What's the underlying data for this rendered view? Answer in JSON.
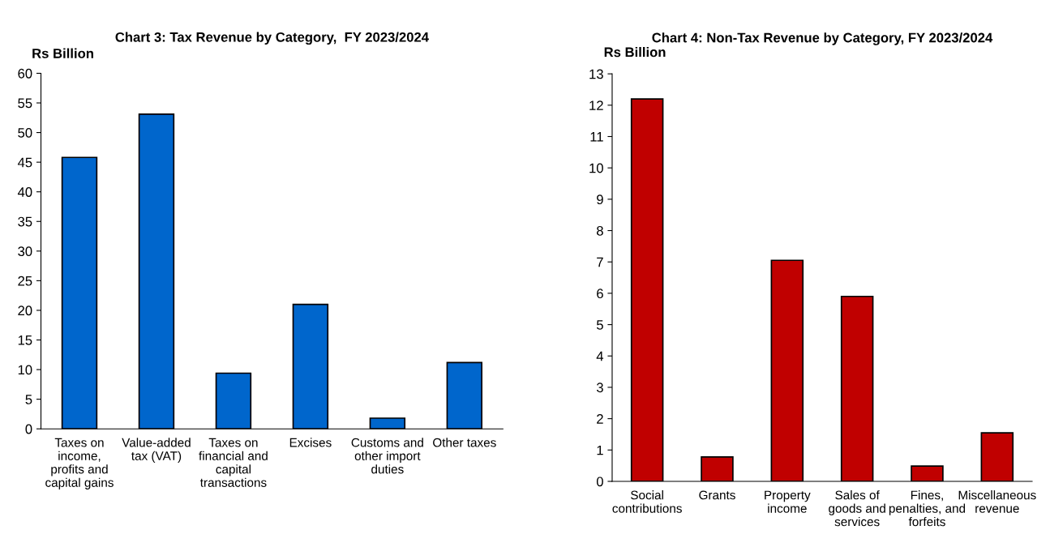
{
  "chart_data": [
    {
      "type": "bar",
      "title": "Chart 3: Tax Revenue by Category,  FY 2023/2024",
      "ylabel": "Rs Billion",
      "categories": [
        "Taxes on\nincome,\nprofits and\ncapital gains",
        "Value-added\ntax (VAT)",
        "Taxes on\nfinancial and\ncapital\ntransactions",
        "Excises",
        "Customs and\nother import\nduties",
        "Other taxes"
      ],
      "values": [
        45.8,
        53.1,
        9.4,
        21.0,
        1.8,
        11.2
      ],
      "color": "#0066cc",
      "ylim": [
        0,
        60
      ],
      "yticks": [
        0,
        5,
        10,
        15,
        20,
        25,
        30,
        35,
        40,
        45,
        50,
        55,
        60
      ],
      "grid": false
    },
    {
      "type": "bar",
      "title": "Chart 4: Non-Tax Revenue by Category, FY 2023/2024",
      "ylabel": "Rs Billion",
      "categories": [
        "Social\ncontributions",
        "Grants",
        "Property\nincome",
        "Sales of\ngoods and\nservices",
        "Fines,\npenalties, and\nforfeits",
        "Miscellaneous\nrevenue"
      ],
      "values": [
        12.2,
        0.78,
        7.05,
        5.9,
        0.49,
        1.55
      ],
      "color": "#c00000",
      "ylim": [
        0,
        13
      ],
      "yticks": [
        0,
        1,
        2,
        3,
        4,
        5,
        6,
        7,
        8,
        9,
        10,
        11,
        12,
        13
      ],
      "grid": false
    }
  ]
}
